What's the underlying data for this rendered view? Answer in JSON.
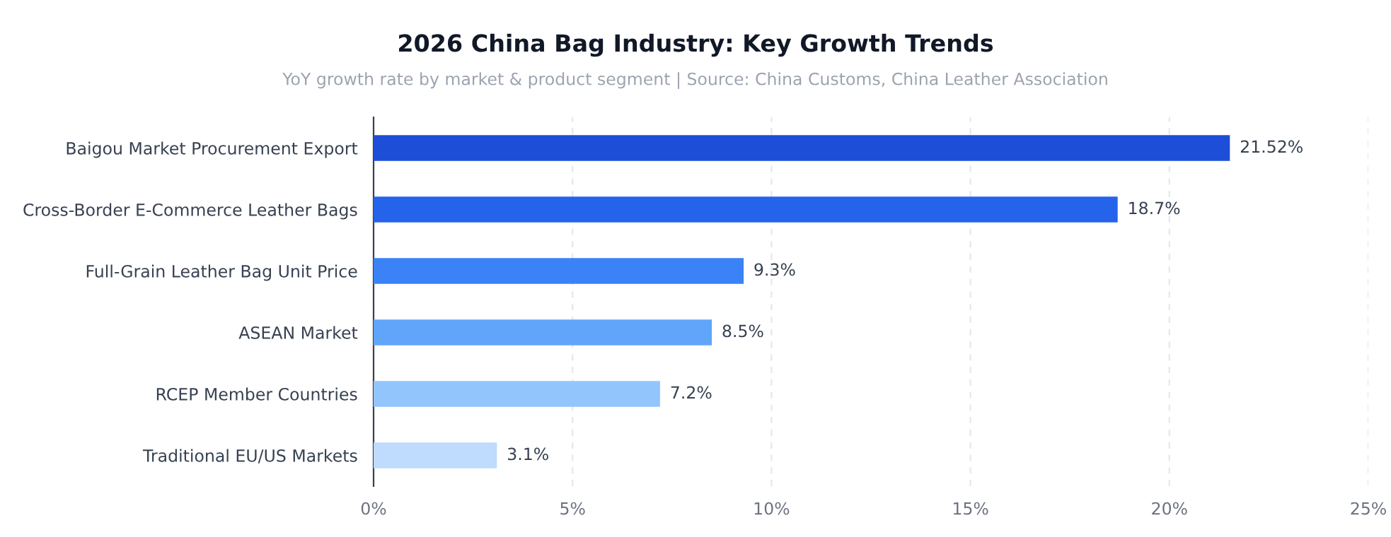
{
  "chart_data": {
    "type": "bar",
    "orientation": "horizontal",
    "title": "2026 China Bag Industry: Key Growth Trends",
    "subtitle": "YoY growth rate by market & product segment | Source: China Customs, China Leather Association",
    "categories": [
      "Baigou Market Procurement Export",
      "Cross-Border E-Commerce Leather Bags",
      "Full-Grain Leather Bag Unit Price",
      "ASEAN Market",
      "RCEP Member Countries",
      "Traditional EU/US Markets"
    ],
    "values": [
      21.52,
      18.7,
      9.3,
      8.5,
      7.2,
      3.1
    ],
    "colors": [
      "#1d4ed8",
      "#2563eb",
      "#3b82f6",
      "#60a5fa",
      "#93c5fd",
      "#bfdbfe"
    ],
    "value_labels": [
      "21.52%",
      "18.7%",
      "9.3%",
      "8.5%",
      "7.2%",
      "3.1%"
    ],
    "xlim": [
      0,
      25
    ],
    "xticks": [
      {
        "value": 0,
        "label": "0%"
      },
      {
        "value": 5,
        "label": "5%"
      },
      {
        "value": 10,
        "label": "10%"
      },
      {
        "value": 15,
        "label": "15%"
      },
      {
        "value": 20,
        "label": "20%"
      },
      {
        "value": 25,
        "label": "25%"
      }
    ],
    "grid": "x",
    "legend": false
  }
}
